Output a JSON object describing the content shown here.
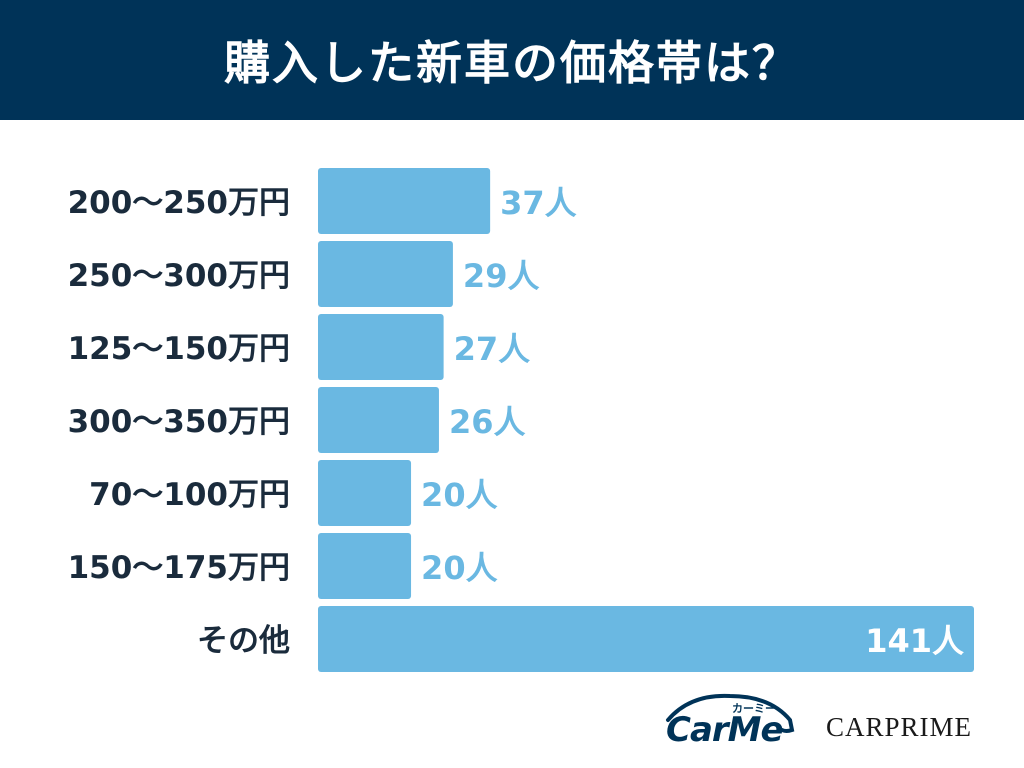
{
  "title": "購入した新車の価格帯は？",
  "colors": {
    "header_bg": "#003358",
    "bar": "#6ab8e2",
    "label_text": "#1a2b3c",
    "value_text": "#6ab8e2",
    "value_text_inside": "#ffffff"
  },
  "chart_data": {
    "type": "bar",
    "orientation": "horizontal",
    "categories": [
      "200～250万円",
      "250～300万円",
      "125～150万円",
      "300～350万円",
      "70～100万円",
      "150～175万円",
      "その他"
    ],
    "values": [
      37,
      29,
      27,
      26,
      20,
      20,
      141
    ],
    "value_labels": [
      "37人",
      "29人",
      "27人",
      "26人",
      "20人",
      "20人",
      "141人"
    ],
    "unit": "人",
    "xlim": [
      0,
      141
    ],
    "grid": false,
    "legend": "none"
  },
  "logos": {
    "carme_word": "CarMe",
    "carme_kana": "カーミー",
    "carprime_word": "CARPRIME"
  }
}
